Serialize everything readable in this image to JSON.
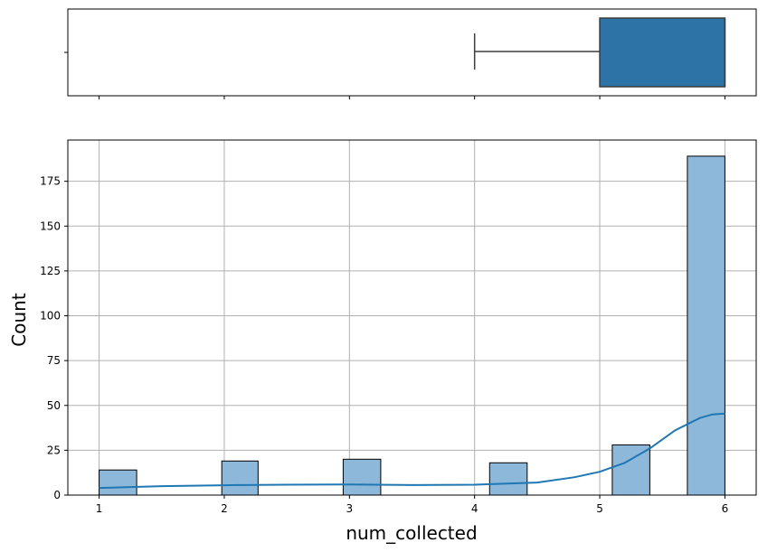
{
  "chart_data": [
    {
      "type": "box",
      "orientation": "horizontal",
      "whisker_low": 4,
      "q1": 5,
      "median": 6,
      "q3": 6,
      "whisker_high": 6,
      "xlim": [
        0.75,
        6.25
      ],
      "box_color": "#2e73a6",
      "whisker_color": "#3d3d3d"
    },
    {
      "type": "bar",
      "subtype": "histogram_with_kde",
      "bars": [
        {
          "x_start": 1.0,
          "x_end": 1.3,
          "count": 14
        },
        {
          "x_start": 1.98,
          "x_end": 2.27,
          "count": 19
        },
        {
          "x_start": 2.95,
          "x_end": 3.25,
          "count": 20
        },
        {
          "x_start": 4.12,
          "x_end": 4.42,
          "count": 18
        },
        {
          "x_start": 5.1,
          "x_end": 5.4,
          "count": 28
        },
        {
          "x_start": 5.7,
          "x_end": 6.0,
          "count": 189
        }
      ],
      "kde": [
        {
          "x": 1.0,
          "y": 4
        },
        {
          "x": 1.5,
          "y": 5
        },
        {
          "x": 2.0,
          "y": 5.5
        },
        {
          "x": 2.5,
          "y": 5.8
        },
        {
          "x": 3.0,
          "y": 5.9
        },
        {
          "x": 3.5,
          "y": 5.6
        },
        {
          "x": 4.0,
          "y": 5.8
        },
        {
          "x": 4.5,
          "y": 7
        },
        {
          "x": 4.8,
          "y": 10
        },
        {
          "x": 5.0,
          "y": 13
        },
        {
          "x": 5.2,
          "y": 18
        },
        {
          "x": 5.4,
          "y": 26
        },
        {
          "x": 5.6,
          "y": 36
        },
        {
          "x": 5.8,
          "y": 43
        },
        {
          "x": 5.9,
          "y": 45
        },
        {
          "x": 6.0,
          "y": 45.5
        }
      ],
      "xlabel": "num_collected",
      "ylabel": "Count",
      "xticks": [
        "1",
        "2",
        "3",
        "4",
        "5",
        "6"
      ],
      "yticks": [
        "0",
        "25",
        "50",
        "75",
        "100",
        "125",
        "150",
        "175"
      ],
      "xlim": [
        0.75,
        6.25
      ],
      "ylim": [
        0,
        198
      ],
      "grid": true,
      "bar_color": "#8db8da",
      "line_color": "#1f77b4"
    }
  ]
}
